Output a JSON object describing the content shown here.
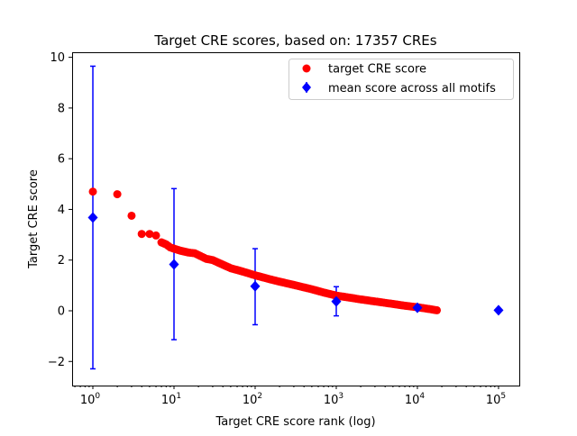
{
  "chart_data": {
    "type": "scatter",
    "title": "Target CRE scores, based on: 17357 CREs",
    "xlabel": "Target CRE score rank (log)",
    "ylabel": "Target CRE score",
    "xscale": "log",
    "xlim": [
      0.555,
      180300
    ],
    "ylim": [
      -2.95,
      10.2
    ],
    "xticks": [
      {
        "v": 1,
        "base": "10",
        "exp": "0"
      },
      {
        "v": 10,
        "base": "10",
        "exp": "1"
      },
      {
        "v": 100,
        "base": "10",
        "exp": "2"
      },
      {
        "v": 1000,
        "base": "10",
        "exp": "3"
      },
      {
        "v": 10000,
        "base": "10",
        "exp": "4"
      },
      {
        "v": 100000,
        "base": "10",
        "exp": "5"
      }
    ],
    "yticks": [
      {
        "v": -2,
        "label": "−2"
      },
      {
        "v": 0,
        "label": "0"
      },
      {
        "v": 2,
        "label": "2"
      },
      {
        "v": 4,
        "label": "4"
      },
      {
        "v": 6,
        "label": "6"
      },
      {
        "v": 8,
        "label": "8"
      },
      {
        "v": 10,
        "label": "10"
      }
    ],
    "legend_position": "top-right",
    "series": [
      {
        "name": "target CRE score",
        "color": "#ff0000",
        "marker": "circle",
        "points": [
          [
            1,
            4.7
          ],
          [
            2,
            4.6
          ],
          [
            3,
            3.75
          ],
          [
            4,
            3.03
          ],
          [
            5,
            3.03
          ],
          [
            6,
            2.97
          ],
          [
            7,
            2.7
          ],
          [
            8,
            2.62
          ],
          [
            9,
            2.5
          ],
          [
            10,
            2.45
          ],
          [
            12,
            2.37
          ],
          [
            15,
            2.3
          ],
          [
            18,
            2.27
          ],
          [
            20,
            2.2
          ],
          [
            25,
            2.05
          ],
          [
            30,
            2.0
          ],
          [
            40,
            1.82
          ],
          [
            50,
            1.68
          ],
          [
            70,
            1.55
          ],
          [
            100,
            1.4
          ],
          [
            150,
            1.25
          ],
          [
            200,
            1.15
          ],
          [
            300,
            1.02
          ],
          [
            500,
            0.85
          ],
          [
            700,
            0.72
          ],
          [
            1000,
            0.6
          ],
          [
            2000,
            0.45
          ],
          [
            3000,
            0.37
          ],
          [
            5000,
            0.27
          ],
          [
            7000,
            0.2
          ],
          [
            10000,
            0.14
          ],
          [
            14000,
            0.07
          ],
          [
            17357,
            0.02
          ]
        ]
      },
      {
        "name": "mean score across all motifs",
        "color": "#0000ff",
        "marker": "diamond",
        "points": [
          {
            "x": 1,
            "y": 3.68,
            "err_low": -2.29,
            "err_high": 9.65
          },
          {
            "x": 10,
            "y": 1.83,
            "err_low": -1.14,
            "err_high": 4.82
          },
          {
            "x": 100,
            "y": 0.97,
            "err_low": -0.55,
            "err_high": 2.45
          },
          {
            "x": 1000,
            "y": 0.37,
            "err_low": -0.2,
            "err_high": 0.95
          },
          {
            "x": 10000,
            "y": 0.12,
            "err_low": 0.06,
            "err_high": 0.2
          },
          {
            "x": 100000,
            "y": 0.02,
            "err_low": 0.02,
            "err_high": 0.02
          }
        ]
      }
    ]
  }
}
